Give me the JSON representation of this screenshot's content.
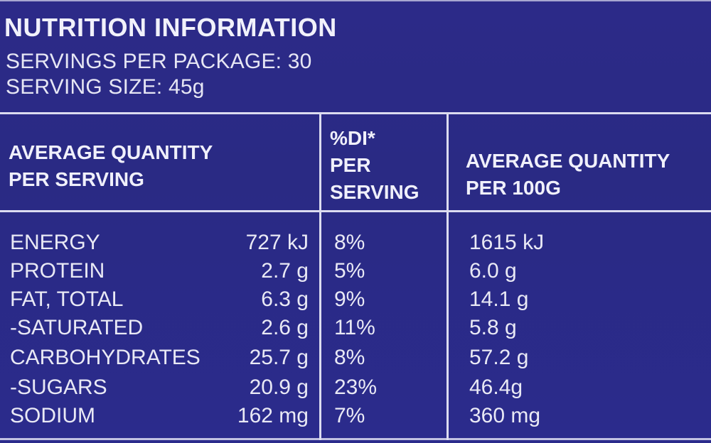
{
  "header": {
    "title": "NUTRITION INFORMATION",
    "servings_per_package": "SERVINGS PER PACKAGE: 30",
    "serving_size": "SERVING SIZE: 45g"
  },
  "table": {
    "columns": {
      "per_serving_1": "AVERAGE QUANTITY",
      "per_serving_2": "PER SERVING",
      "di_1": "%DI*",
      "di_2": "PER",
      "di_3": "SERVING",
      "per100_1": "AVERAGE QUANTITY",
      "per100_2": "PER 100G"
    },
    "rows": [
      {
        "nutrient": "ENERGY",
        "serving": "727 kJ",
        "di": "8%",
        "per100": "1615 kJ"
      },
      {
        "nutrient": "PROTEIN",
        "serving": "2.7 g",
        "di": "5%",
        "per100": "6.0 g"
      },
      {
        "nutrient": "FAT, TOTAL",
        "serving": "6.3 g",
        "di": "9%",
        "per100": "14.1 g"
      },
      {
        "nutrient": "-SATURATED",
        "serving": "2.6 g",
        "di": "11%",
        "per100": "5.8 g"
      },
      {
        "nutrient": "CARBOHYDRATES",
        "serving": "25.7 g",
        "di": "8%",
        "per100": "57.2 g"
      },
      {
        "nutrient": "-SUGARS",
        "serving": "20.9 g",
        "di": "23%",
        "per100": "46.4g"
      },
      {
        "nutrient": "SODIUM",
        "serving": "162 mg",
        "di": "7%",
        "per100": "360 mg"
      }
    ]
  },
  "colors": {
    "background": "#2a2a86",
    "text": "#e9e9f5",
    "rule": "#dcdcf0"
  }
}
